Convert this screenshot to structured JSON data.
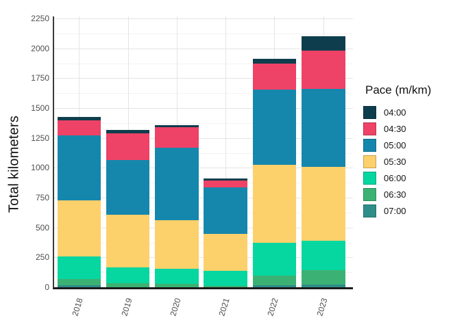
{
  "chart_data": {
    "type": "bar",
    "stacked": true,
    "orientation": "vertical",
    "title": "",
    "xlabel": "",
    "ylabel": "Total kilometers",
    "ylim": [
      0,
      2250
    ],
    "yticks": [
      0,
      250,
      500,
      750,
      1000,
      1250,
      1500,
      1750,
      2000,
      2250
    ],
    "ytick_minor_step": 125,
    "grid": "major and minor horizontal, major vertical at category centers",
    "categories": [
      "2018",
      "2019",
      "2020",
      "2021",
      "2022",
      "2023"
    ],
    "legend_title": "Pace (m/km)",
    "legend_position": "right",
    "stack_note": "first series listed is drawn at top of stack, last at bottom",
    "series": [
      {
        "name": "04:00",
        "color": "#0E3E4D",
        "values": [
          30,
          25,
          15,
          15,
          40,
          120
        ]
      },
      {
        "name": "04:30",
        "color": "#EE4266",
        "values": [
          125,
          225,
          170,
          60,
          215,
          320
        ]
      },
      {
        "name": "05:00",
        "color": "#1687AC",
        "values": [
          545,
          460,
          610,
          390,
          630,
          650
        ]
      },
      {
        "name": "05:30",
        "color": "#FCD06B",
        "values": [
          470,
          440,
          405,
          310,
          650,
          620
        ]
      },
      {
        "name": "06:00",
        "color": "#06D6A0",
        "values": [
          185,
          130,
          125,
          125,
          275,
          245
        ]
      },
      {
        "name": "06:30",
        "color": "#3BB273",
        "values": [
          55,
          35,
          30,
          10,
          85,
          120
        ]
      },
      {
        "name": "07:00",
        "color": "#2F8E89",
        "values": [
          15,
          0,
          0,
          0,
          15,
          25
        ]
      }
    ],
    "totals": [
      1425,
      1315,
      1355,
      910,
      1910,
      2100
    ],
    "colors": {
      "background": "#ffffff",
      "grid_major": "#e4e4e4",
      "grid_minor": "#f2f2f2",
      "axis_line_y": "#3a3a3a",
      "axis_line_x": "#1a1a1a",
      "tick_text": "#4d4d4d",
      "title_text": "#111111"
    }
  }
}
